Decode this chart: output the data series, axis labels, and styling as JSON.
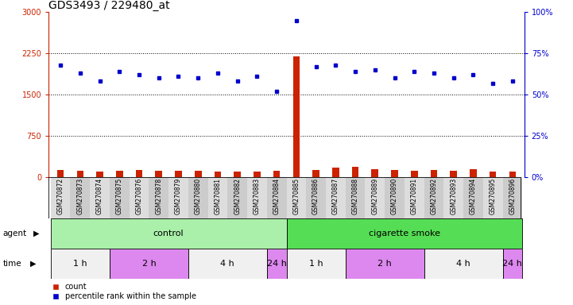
{
  "title": "GDS3493 / 229480_at",
  "samples": [
    "GSM270872",
    "GSM270873",
    "GSM270874",
    "GSM270875",
    "GSM270876",
    "GSM270878",
    "GSM270879",
    "GSM270880",
    "GSM270881",
    "GSM270882",
    "GSM270883",
    "GSM270884",
    "GSM270885",
    "GSM270886",
    "GSM270887",
    "GSM270888",
    "GSM270889",
    "GSM270890",
    "GSM270891",
    "GSM270892",
    "GSM270893",
    "GSM270894",
    "GSM270895",
    "GSM270896"
  ],
  "counts": [
    130,
    110,
    95,
    115,
    120,
    110,
    105,
    110,
    100,
    95,
    100,
    105,
    2200,
    120,
    175,
    185,
    145,
    130,
    110,
    120,
    115,
    140,
    100,
    95
  ],
  "percentiles": [
    68,
    63,
    58,
    64,
    62,
    60,
    61,
    60,
    63,
    58,
    61,
    52,
    95,
    67,
    68,
    64,
    65,
    60,
    64,
    63,
    60,
    62,
    57,
    58
  ],
  "ylim_left": [
    0,
    3000
  ],
  "ylim_right": [
    0,
    100
  ],
  "yticks_left": [
    0,
    750,
    1500,
    2250,
    3000
  ],
  "yticks_right": [
    0,
    25,
    50,
    75,
    100
  ],
  "bar_color": "#cc2200",
  "dot_color": "#0000cc",
  "agent_control_color": "#aaf0aa",
  "agent_smoke_color": "#55dd55",
  "time_white_color": "#f0f0f0",
  "time_pink_color": "#dd88ee",
  "time_groups": [
    {
      "label": "1 h",
      "start": 0,
      "end": 3,
      "color": "#f0f0f0"
    },
    {
      "label": "2 h",
      "start": 3,
      "end": 7,
      "color": "#dd88ee"
    },
    {
      "label": "4 h",
      "start": 7,
      "end": 11,
      "color": "#f0f0f0"
    },
    {
      "label": "24 h",
      "start": 11,
      "end": 12,
      "color": "#dd88ee"
    },
    {
      "label": "1 h",
      "start": 12,
      "end": 15,
      "color": "#f0f0f0"
    },
    {
      "label": "2 h",
      "start": 15,
      "end": 19,
      "color": "#dd88ee"
    },
    {
      "label": "4 h",
      "start": 19,
      "end": 23,
      "color": "#f0f0f0"
    },
    {
      "label": "24 h",
      "start": 23,
      "end": 24,
      "color": "#dd88ee"
    }
  ],
  "title_fontsize": 10,
  "tick_fontsize": 7,
  "sample_fontsize": 5.5,
  "annotation_fontsize": 8,
  "label_fontsize": 7.5,
  "n_control": 12,
  "n_total": 24
}
